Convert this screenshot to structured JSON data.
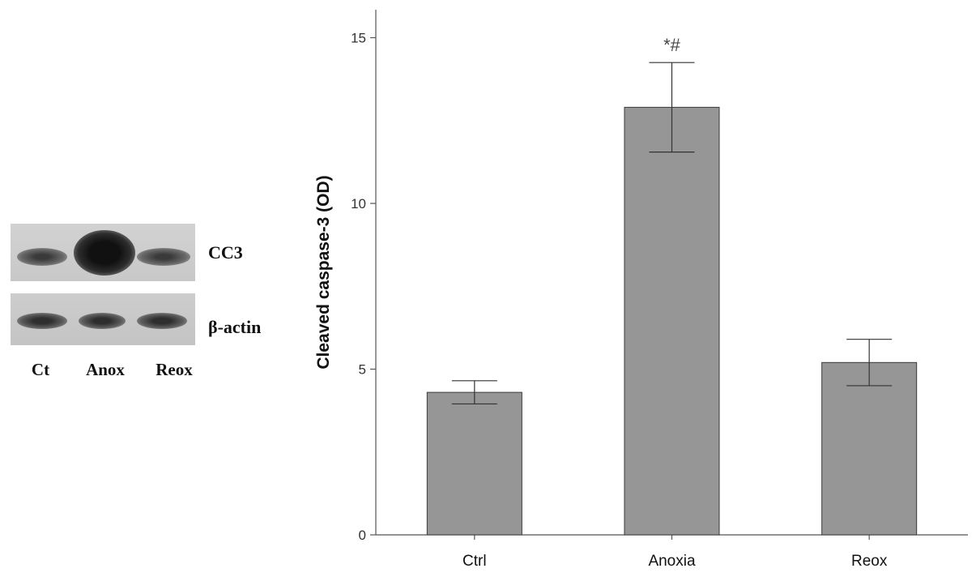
{
  "blot": {
    "bands": [
      "CC3",
      "β-actin"
    ],
    "lanes": [
      "Ct",
      "Anox",
      "Reox"
    ]
  },
  "chart_data": {
    "type": "bar",
    "categories": [
      "Ctrl",
      "Anoxia",
      "Reox"
    ],
    "values": [
      4.3,
      12.9,
      5.2
    ],
    "error": [
      0.35,
      1.35,
      0.7
    ],
    "annotations": [
      {
        "category": "Anoxia",
        "text": "*#"
      }
    ],
    "ylabel": "Cleaved caspase-3 (OD)",
    "xlabel": "",
    "ylim": [
      0,
      16
    ],
    "yticks": [
      0,
      5,
      10,
      15
    ],
    "bar_color": "#969696",
    "grid": false
  }
}
